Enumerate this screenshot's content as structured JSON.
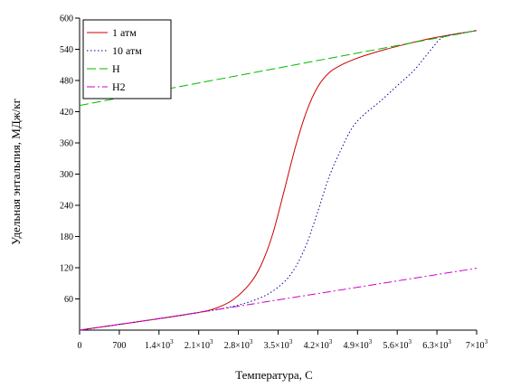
{
  "chart_data": {
    "type": "line",
    "xlabel": "Температура, С",
    "ylabel": "Удельная энтальпия, МДж/кг",
    "xlim": [
      0,
      7000
    ],
    "ylim": [
      0,
      600
    ],
    "x_ticks": [
      {
        "value": 0,
        "label": "0"
      },
      {
        "value": 700,
        "label": "700"
      },
      {
        "value": 1400,
        "label": "1.4×10",
        "exp": "3"
      },
      {
        "value": 2100,
        "label": "2.1×10",
        "exp": "3"
      },
      {
        "value": 2800,
        "label": "2.8×10",
        "exp": "3"
      },
      {
        "value": 3500,
        "label": "3.5×10",
        "exp": "3"
      },
      {
        "value": 4200,
        "label": "4.2×10",
        "exp": "3"
      },
      {
        "value": 4900,
        "label": "4.9×10",
        "exp": "3"
      },
      {
        "value": 5600,
        "label": "5.6×10",
        "exp": "3"
      },
      {
        "value": 6300,
        "label": "6.3×10",
        "exp": "3"
      },
      {
        "value": 7000,
        "label": "7×10",
        "exp": "3"
      }
    ],
    "y_ticks": [
      {
        "value": 60,
        "label": "60"
      },
      {
        "value": 120,
        "label": "120"
      },
      {
        "value": 180,
        "label": "180"
      },
      {
        "value": 240,
        "label": "240"
      },
      {
        "value": 300,
        "label": "300"
      },
      {
        "value": 360,
        "label": "360"
      },
      {
        "value": 420,
        "label": "420"
      },
      {
        "value": 480,
        "label": "480"
      },
      {
        "value": 540,
        "label": "540"
      },
      {
        "value": 600,
        "label": "600"
      }
    ],
    "grid": false,
    "legend_position": "top-left",
    "series": [
      {
        "name": "1 атм",
        "color": "#cc0000",
        "dash": "solid",
        "x": [
          0,
          700,
          1400,
          2100,
          2400,
          2700,
          3000,
          3200,
          3400,
          3600,
          3800,
          4000,
          4200,
          4400,
          4600,
          4800,
          5000,
          5400,
          5800,
          6200,
          6600,
          7000
        ],
        "y": [
          0,
          11,
          22,
          34,
          42,
          58,
          89,
          125,
          183,
          265,
          350,
          420,
          468,
          495,
          509,
          519,
          527,
          540,
          551,
          561,
          569,
          576
        ]
      },
      {
        "name": "10 атм",
        "color": "#000099",
        "dash": "dotted",
        "x": [
          0,
          700,
          1400,
          2100,
          2500,
          2900,
          3300,
          3600,
          3800,
          4000,
          4200,
          4400,
          4600,
          4800,
          5000,
          5300,
          5600,
          5900,
          6200,
          6400,
          6700,
          7000
        ],
        "y": [
          0,
          11,
          22,
          34,
          41,
          51,
          68,
          92,
          120,
          165,
          228,
          295,
          345,
          388,
          413,
          440,
          470,
          500,
          540,
          563,
          570,
          576
        ]
      },
      {
        "name": "H",
        "color": "#00bb00",
        "dash": "longdash",
        "x": [
          0,
          7000
        ],
        "y": [
          432,
          576
        ]
      },
      {
        "name": "H2",
        "color": "#cc00cc",
        "dash": "dashdot",
        "x": [
          0,
          2100,
          7000
        ],
        "y": [
          0,
          34,
          119
        ]
      }
    ]
  }
}
